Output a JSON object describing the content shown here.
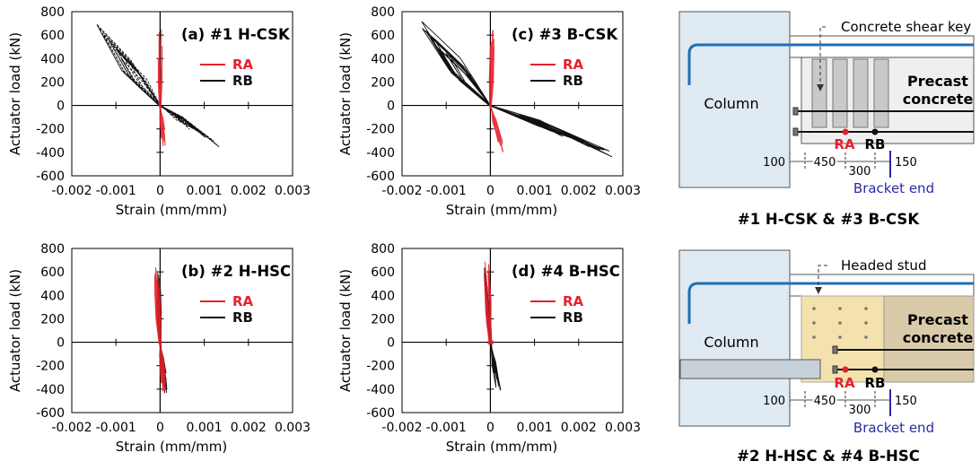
{
  "chart_data": [
    {
      "type": "line",
      "title": "(a) #1 H-CSK",
      "xlabel": "Strain (mm/mm)",
      "ylabel": "Actuator load (kN)",
      "xlim": [
        -0.002,
        0.003
      ],
      "ylim": [
        -600,
        800
      ],
      "x_ticks": [
        "-0.002",
        "-0.001",
        "0",
        "0.001",
        "0.002",
        "0.003"
      ],
      "y_ticks": [
        "800",
        "600",
        "400",
        "200",
        "0",
        "-200",
        "-400",
        "-600"
      ],
      "legend": "right",
      "series": [
        {
          "name": "RA",
          "color": "#e8202a",
          "x": [
            0.0,
            3e-05,
            5e-05,
            7e-05,
            0.0001
          ],
          "y": [
            650,
            350,
            0,
            -150,
            -350
          ]
        },
        {
          "name": "RB",
          "color": "#111111",
          "x": [
            -0.0014,
            -0.001,
            -0.0006,
            0.0,
            0.0006,
            0.0013
          ],
          "y": [
            680,
            480,
            250,
            0,
            -180,
            -340
          ]
        }
      ]
    },
    {
      "type": "line",
      "title": "(c) #3 B-CSK",
      "xlabel": "Strain (mm/mm)",
      "ylabel": "Actuator load (kN)",
      "xlim": [
        -0.002,
        0.003
      ],
      "ylim": [
        -600,
        800
      ],
      "x_ticks": [
        "-0.002",
        "-0.001",
        "0",
        "0.001",
        "0.002",
        "0.003"
      ],
      "y_ticks": [
        "800",
        "600",
        "400",
        "200",
        "0",
        "-200",
        "-400",
        "-600"
      ],
      "legend": "right",
      "series": [
        {
          "name": "RA",
          "color": "#e8202a",
          "x": [
            5e-05,
            0.0001,
            0.0002,
            0.0003
          ],
          "y": [
            650,
            200,
            -150,
            -400
          ]
        },
        {
          "name": "RB",
          "color": "#111111",
          "x": [
            -0.0016,
            -0.001,
            -0.0004,
            0.0,
            0.001,
            0.002,
            0.0028
          ],
          "y": [
            700,
            500,
            250,
            0,
            -150,
            -300,
            -420
          ]
        }
      ]
    },
    {
      "type": "line",
      "title": "(b) #2 H-HSC",
      "xlabel": "Strain (mm/mm)",
      "ylabel": "Actuator load (kN)",
      "xlim": [
        -0.002,
        0.003
      ],
      "ylim": [
        -600,
        800
      ],
      "x_ticks": [
        "-0.002",
        "-0.001",
        "0",
        "0.001",
        "0.002",
        "0.003"
      ],
      "y_ticks": [
        "800",
        "600",
        "400",
        "200",
        "0",
        "-200",
        "-400",
        "-600"
      ],
      "legend": "right",
      "series": [
        {
          "name": "RA",
          "color": "#e8202a",
          "x": [
            -0.0001,
            0.0,
            0.0001,
            0.0
          ],
          "y": [
            650,
            300,
            -200,
            -450
          ]
        },
        {
          "name": "RB",
          "color": "#111111",
          "x": [
            -5e-05,
            0.0,
            0.00015,
            0.0001
          ],
          "y": [
            600,
            200,
            -300,
            -450
          ]
        }
      ]
    },
    {
      "type": "line",
      "title": "(d) #4 B-HSC",
      "xlabel": "Strain (mm/mm)",
      "ylabel": "Actuator load (kN)",
      "xlim": [
        -0.002,
        0.003
      ],
      "ylim": [
        -600,
        800
      ],
      "x_ticks": [
        "-0.002",
        "-0.001",
        "0",
        "0.001",
        "0.002",
        "0.003"
      ],
      "y_ticks": [
        "800",
        "600",
        "400",
        "200",
        "0",
        "-200",
        "-400",
        "-600"
      ],
      "legend": "right",
      "series": [
        {
          "name": "RA",
          "color": "#e8202a",
          "x": [
            -0.0001,
            -5e-05,
            0.0
          ],
          "y": [
            700,
            300,
            0
          ]
        },
        {
          "name": "RB",
          "color": "#111111",
          "x": [
            -0.0001,
            -3e-05,
            0.0,
            0.0001,
            0.0002
          ],
          "y": [
            650,
            300,
            0,
            -200,
            -420
          ]
        }
      ]
    }
  ],
  "diagrams": {
    "top": {
      "column_label": "Column",
      "precast_label_1": "Precast",
      "precast_label_2": "concrete",
      "callout": "Concrete shear key",
      "ra": "RA",
      "rb": "RB",
      "dim_100": "100",
      "dim_450": "450",
      "dim_300": "300",
      "dim_150": "150",
      "bracket_end": "Bracket end",
      "caption": "#1 H-CSK & #3 B-CSK"
    },
    "bottom": {
      "column_label": "Column",
      "precast_label_1": "Precast",
      "precast_label_2": "concrete",
      "callout": "Headed stud",
      "ra": "RA",
      "rb": "RB",
      "dim_100": "100",
      "dim_450": "450",
      "dim_300": "300",
      "dim_150": "150",
      "bracket_end": "Bracket end",
      "caption": "#2 H-HSC & #4 B-HSC"
    }
  },
  "colors": {
    "ra": "#e8202a",
    "rb": "#111111",
    "column_fill": "#dfeaf3",
    "beam_blue": "#1f6fb5",
    "bracket_end": "#2a2aa8",
    "stud_zone": "#f3e2ad",
    "precast_dark": "#d9cbaa"
  }
}
